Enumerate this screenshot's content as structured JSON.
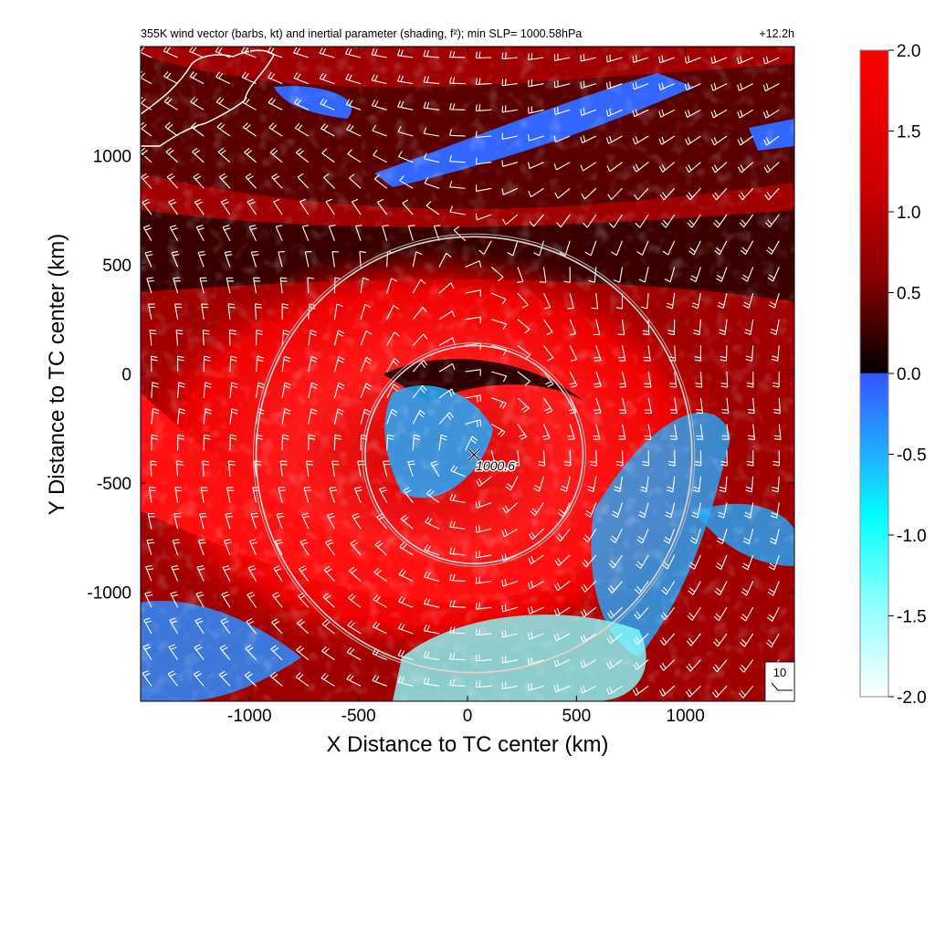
{
  "chart_data": {
    "type": "heatmap",
    "title": "355K wind vector (barbs, kt) and inertial parameter (shading, f²); min SLP= 1000.58hPa",
    "time_label": "+12.2h",
    "xlabel": "X Distance to TC center (km)",
    "ylabel": "Y Distance to TC center (km)",
    "xlim": [
      -1500,
      1500
    ],
    "ylim": [
      -1500,
      1500
    ],
    "xticks": [
      -1000,
      -500,
      0,
      500,
      1000
    ],
    "xtick_labels": [
      "-1000",
      "-500",
      "0",
      "500",
      "1000"
    ],
    "yticks": [
      1000,
      500,
      0,
      -500,
      -1000
    ],
    "ytick_labels": [
      "1000",
      "500",
      "0",
      "-500",
      "-1000"
    ],
    "colorbar": {
      "range": [
        -2.0,
        2.0
      ],
      "ticks": [
        2.0,
        1.5,
        1.0,
        0.5,
        0.0,
        -0.5,
        -1.0,
        -1.5,
        -2.0
      ],
      "tick_labels": [
        "2.0",
        "1.5",
        "1.0",
        "0.5",
        "0.0",
        "-0.5",
        "-1.0",
        "-1.5",
        "-2.0"
      ],
      "positive_colors": [
        "#000000",
        "#5a0000",
        "#a00000",
        "#e00000",
        "#ff0000"
      ],
      "negative_colors": [
        "#3355ff",
        "#22aaff",
        "#00ffff",
        "#88ffff",
        "#ffffff"
      ]
    },
    "center_marker": {
      "x": 30,
      "y": -370,
      "label": "1000.6"
    },
    "range_circles": [
      {
        "cx": 30,
        "cy": -370,
        "r": 500
      },
      {
        "cx": 30,
        "cy": -370,
        "r": 1000
      }
    ],
    "reference_barb_label": "10",
    "coastline_color": "#ffffff",
    "grid": false
  }
}
